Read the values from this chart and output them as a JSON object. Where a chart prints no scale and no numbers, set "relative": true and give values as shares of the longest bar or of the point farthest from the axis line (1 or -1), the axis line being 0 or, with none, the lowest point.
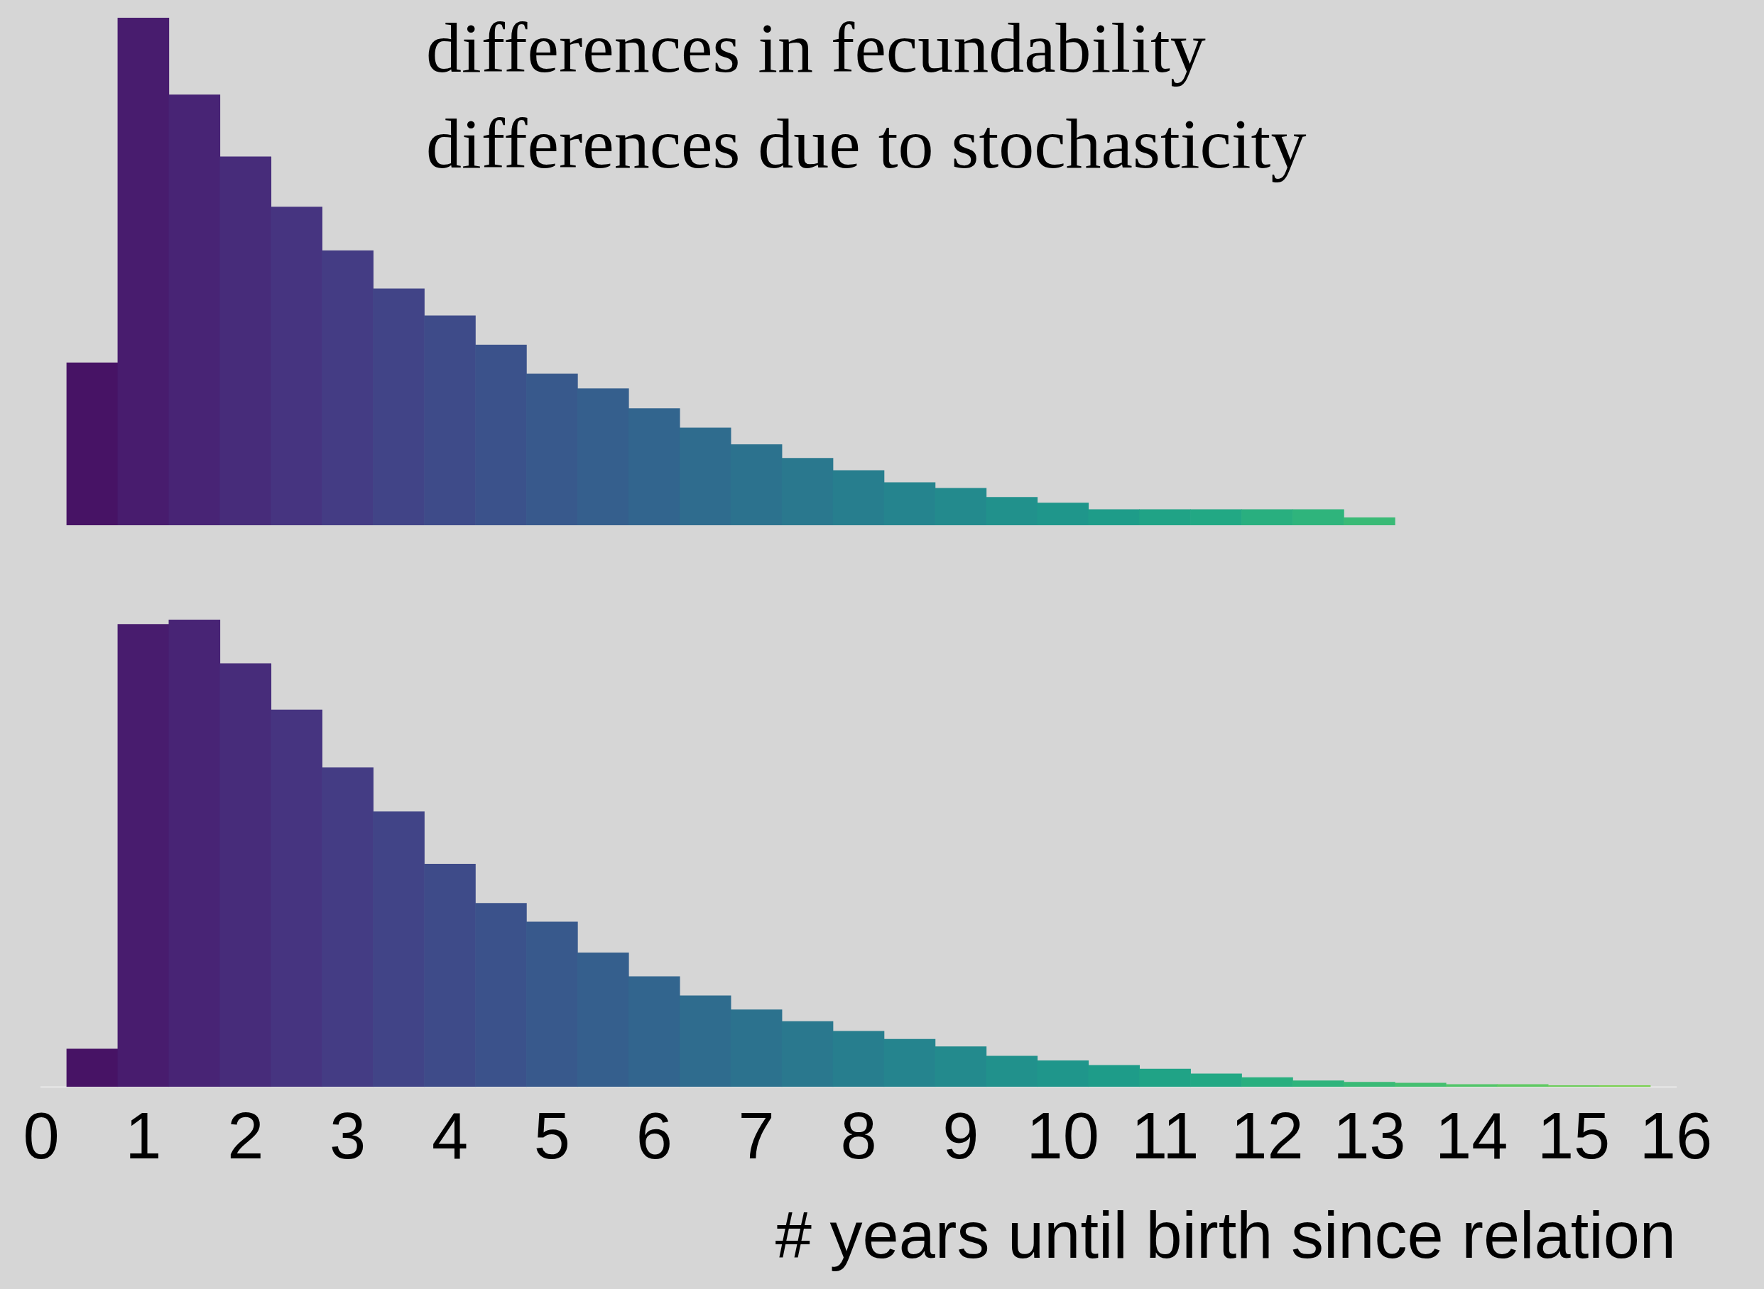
{
  "chart_data": [
    {
      "type": "bar",
      "relative": true,
      "tick_labels": false,
      "xlim": [
        0,
        16
      ],
      "xticks": [
        0,
        1,
        2,
        3,
        4,
        5,
        6,
        7,
        8,
        9,
        10,
        11,
        12,
        13,
        14,
        15,
        16
      ],
      "annotations": [
        "differences in fecundability",
        "differences due to stochasticity"
      ],
      "x": [
        0.5,
        1,
        1.5,
        2,
        2.5,
        3,
        3.5,
        4,
        4.5,
        5,
        5.5,
        6,
        6.5,
        7,
        7.5,
        8,
        8.5,
        9,
        9.5,
        10,
        10.5,
        11,
        11.5,
        12,
        12.5,
        13
      ],
      "values": [
        0.32,
        1,
        0.848,
        0.726,
        0.627,
        0.541,
        0.466,
        0.413,
        0.355,
        0.298,
        0.269,
        0.23,
        0.192,
        0.159,
        0.132,
        0.108,
        0.084,
        0.073,
        0.055,
        0.044,
        0.031,
        0.031,
        0.031,
        0.031,
        0.031,
        0.015
      ],
      "colors": [
        "#471365",
        "#481c6e",
        "#482475",
        "#472c7a",
        "#463480",
        "#443c84",
        "#414487",
        "#3e4b89",
        "#3b528b",
        "#38598c",
        "#355f8d",
        "#32658e",
        "#2f6c8e",
        "#2c728e",
        "#2a788e",
        "#277e8e",
        "#25848e",
        "#238a8d",
        "#21918c",
        "#1f968b",
        "#1e9c89",
        "#20a386",
        "#22a884",
        "#29af7f",
        "#2fb47c",
        "#3aba76"
      ]
    },
    {
      "type": "bar",
      "relative": true,
      "xlim": [
        0,
        16
      ],
      "xticks": [
        0,
        1,
        2,
        3,
        4,
        5,
        6,
        7,
        8,
        9,
        10,
        11,
        12,
        13,
        14,
        15,
        16
      ],
      "xlabel": "# years until birth since relation",
      "x": [
        0.5,
        1,
        1.5,
        2,
        2.5,
        3,
        3.5,
        4,
        4.5,
        5,
        5.5,
        6,
        6.5,
        7,
        7.5,
        8,
        8.5,
        9,
        9.5,
        10,
        10.5,
        11,
        11.5,
        12,
        12.5,
        13,
        13.5,
        14,
        14.5,
        15,
        15.5
      ],
      "values": [
        0.081,
        0.99,
        1,
        0.906,
        0.807,
        0.683,
        0.589,
        0.477,
        0.393,
        0.353,
        0.287,
        0.236,
        0.195,
        0.165,
        0.14,
        0.119,
        0.102,
        0.086,
        0.066,
        0.056,
        0.046,
        0.038,
        0.028,
        0.02,
        0.013,
        0.01,
        0.008,
        0.005,
        0.005,
        0.003,
        0.003
      ],
      "colors": [
        "#471365",
        "#481c6e",
        "#482475",
        "#472c7a",
        "#463480",
        "#443c84",
        "#414487",
        "#3e4b89",
        "#3b528b",
        "#38598c",
        "#355f8d",
        "#32658e",
        "#2f6c8e",
        "#2c728e",
        "#2a788e",
        "#277e8e",
        "#25848e",
        "#238a8d",
        "#21918c",
        "#1f968b",
        "#1e9c89",
        "#20a386",
        "#22a884",
        "#29af7f",
        "#2fb47c",
        "#3aba76",
        "#44bf70",
        "#51c569",
        "#5ec962",
        "#6ccd5a",
        "#7ad151"
      ]
    }
  ]
}
